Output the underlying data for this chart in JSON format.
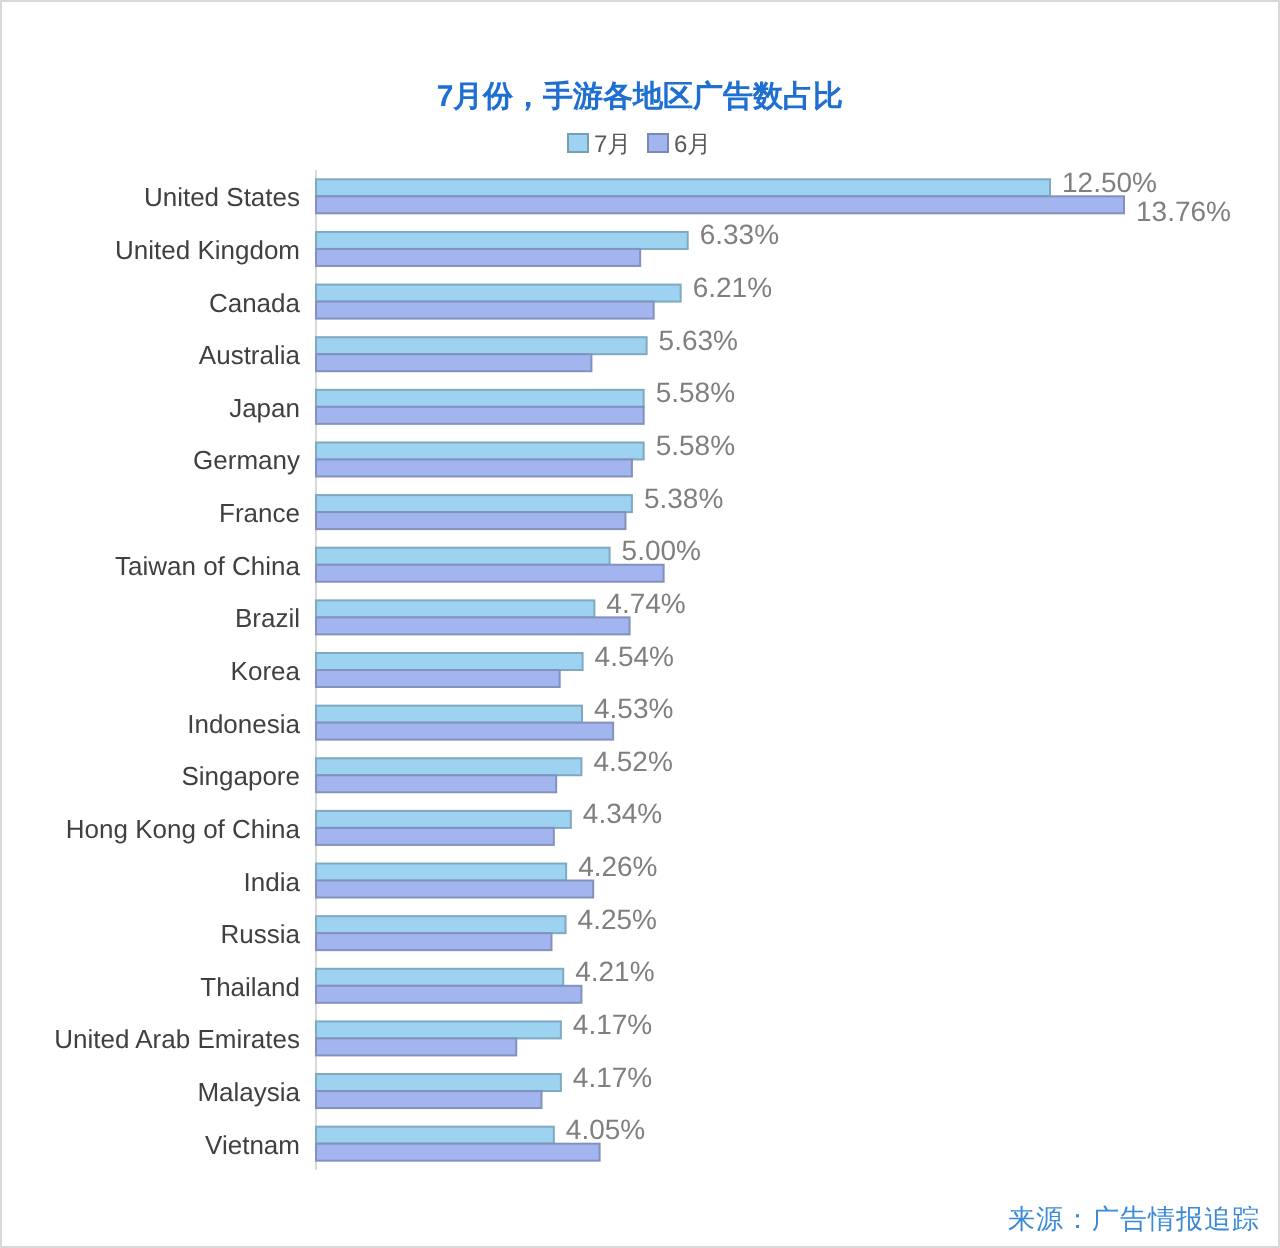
{
  "chart_data": {
    "type": "bar",
    "orientation": "horizontal",
    "title": "7月份，手游各地区广告数占比",
    "legend": "top",
    "categories": [
      "United States",
      "United Kingdom",
      "Canada",
      "Australia",
      "Japan",
      "Germany",
      "France",
      "Taiwan of China",
      "Brazil",
      "Korea",
      "Indonesia",
      "Singapore",
      "Hong Kong of China",
      "India",
      "Russia",
      "Thailand",
      "United Arab Emirates",
      "Malaysia",
      "Vietnam"
    ],
    "series": [
      {
        "name": "7月",
        "color": "#9dd3f0",
        "values": [
          12.5,
          6.33,
          6.21,
          5.63,
          5.58,
          5.58,
          5.38,
          5.0,
          4.74,
          4.54,
          4.53,
          4.52,
          4.34,
          4.26,
          4.25,
          4.21,
          4.17,
          4.17,
          4.05
        ],
        "value_labels": [
          "12.50%",
          "6.33%",
          "6.21%",
          "5.63%",
          "5.58%",
          "5.58%",
          "5.38%",
          "5.00%",
          "4.74%",
          "4.54%",
          "4.53%",
          "4.52%",
          "4.34%",
          "4.26%",
          "4.25%",
          "4.21%",
          "4.17%",
          "4.17%",
          "4.05%"
        ]
      },
      {
        "name": "6月",
        "color": "#a3b5ee",
        "values": [
          13.76,
          5.52,
          5.75,
          4.69,
          5.58,
          5.38,
          5.27,
          5.92,
          5.34,
          4.15,
          5.06,
          4.09,
          4.05,
          4.72,
          4.01,
          4.52,
          3.41,
          3.84,
          4.83
        ],
        "value_labels": [
          "13.76%",
          null,
          null,
          null,
          null,
          null,
          null,
          null,
          null,
          null,
          null,
          null,
          null,
          null,
          null,
          null,
          null,
          null,
          null
        ]
      }
    ],
    "annotations": [
      "来源：广告情报追踪"
    ]
  }
}
